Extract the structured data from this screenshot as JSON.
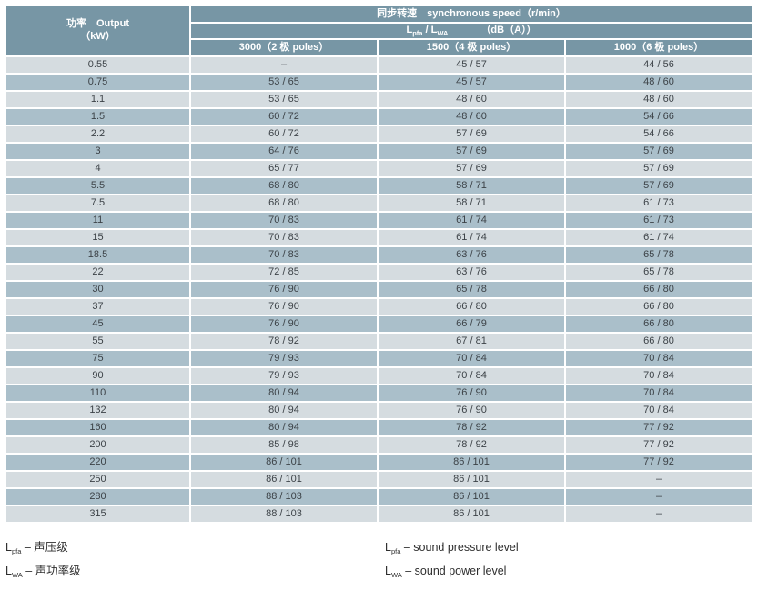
{
  "table": {
    "colors": {
      "header_bg": "#7796a5",
      "row_light": "#d5dce0",
      "row_dark": "#aabfca",
      "header_text": "#ffffff",
      "cell_text": "#3c4247"
    },
    "header": {
      "output_line1": "功率　Output",
      "output_line2": "（kW）",
      "speed_title": "同步转速　synchronous speed（r/min）",
      "level": {
        "base1": "L",
        "sub1": "pfa",
        "sep": " / ",
        "base2": "L",
        "sub2": "WA",
        "unit": "（dB（A））"
      },
      "columns": [
        "3000（2 极 poles）",
        "1500（4 极 poles）",
        "1000（6 极 poles）"
      ]
    },
    "rows": [
      {
        "output": "0.55",
        "values": [
          "–",
          "45 / 57",
          "44 / 56"
        ]
      },
      {
        "output": "0.75",
        "values": [
          "53 / 65",
          "45 / 57",
          "48 / 60"
        ]
      },
      {
        "output": "1.1",
        "values": [
          "53 / 65",
          "48 / 60",
          "48 / 60"
        ]
      },
      {
        "output": "1.5",
        "values": [
          "60 / 72",
          "48 / 60",
          "54 / 66"
        ]
      },
      {
        "output": "2.2",
        "values": [
          "60 / 72",
          "57 / 69",
          "54 / 66"
        ]
      },
      {
        "output": "3",
        "values": [
          "64 / 76",
          "57 / 69",
          "57 / 69"
        ]
      },
      {
        "output": "4",
        "values": [
          "65 / 77",
          "57 / 69",
          "57 / 69"
        ]
      },
      {
        "output": "5.5",
        "values": [
          "68 / 80",
          "58 / 71",
          "57 / 69"
        ]
      },
      {
        "output": "7.5",
        "values": [
          "68 / 80",
          "58 / 71",
          "61 / 73"
        ]
      },
      {
        "output": "11",
        "values": [
          "70 / 83",
          "61 / 74",
          "61 / 73"
        ]
      },
      {
        "output": "15",
        "values": [
          "70 / 83",
          "61 / 74",
          "61 / 74"
        ]
      },
      {
        "output": "18.5",
        "values": [
          "70 / 83",
          "63 / 76",
          "65 / 78"
        ]
      },
      {
        "output": "22",
        "values": [
          "72 / 85",
          "63 / 76",
          "65 / 78"
        ]
      },
      {
        "output": "30",
        "values": [
          "76 / 90",
          "65 / 78",
          "66 / 80"
        ]
      },
      {
        "output": "37",
        "values": [
          "76 / 90",
          "66 / 80",
          "66 / 80"
        ]
      },
      {
        "output": "45",
        "values": [
          "76 / 90",
          "66 / 79",
          "66 / 80"
        ]
      },
      {
        "output": "55",
        "values": [
          "78 / 92",
          "67 / 81",
          "66 / 80"
        ]
      },
      {
        "output": "75",
        "values": [
          "79 / 93",
          "70 / 84",
          "70 / 84"
        ]
      },
      {
        "output": "90",
        "values": [
          "79 / 93",
          "70 / 84",
          "70 / 84"
        ]
      },
      {
        "output": "110",
        "values": [
          "80 / 94",
          "76 / 90",
          "70 / 84"
        ]
      },
      {
        "output": "132",
        "values": [
          "80 / 94",
          "76 / 90",
          "70 / 84"
        ]
      },
      {
        "output": "160",
        "values": [
          "80 / 94",
          "78 / 92",
          "77 / 92"
        ]
      },
      {
        "output": "200",
        "values": [
          "85 / 98",
          "78 / 92",
          "77 / 92"
        ]
      },
      {
        "output": "220",
        "values": [
          "86 / 101",
          "86 / 101",
          "77 / 92"
        ]
      },
      {
        "output": "250",
        "values": [
          "86 / 101",
          "86 / 101",
          "–"
        ]
      },
      {
        "output": "280",
        "values": [
          "88 / 103",
          "86 / 101",
          "–"
        ]
      },
      {
        "output": "315",
        "values": [
          "88 / 103",
          "86 / 101",
          "–"
        ]
      }
    ]
  },
  "footnotes": {
    "cn": [
      {
        "base": "L",
        "sub": "pfa",
        "text": " – 声压级"
      },
      {
        "base": "L",
        "sub": "WA",
        "text": " – 声功率级"
      }
    ],
    "en": [
      {
        "base": "L",
        "sub": "pfa",
        "text": " – sound pressure level"
      },
      {
        "base": "L",
        "sub": "WA",
        "text": " – sound power level"
      }
    ]
  }
}
